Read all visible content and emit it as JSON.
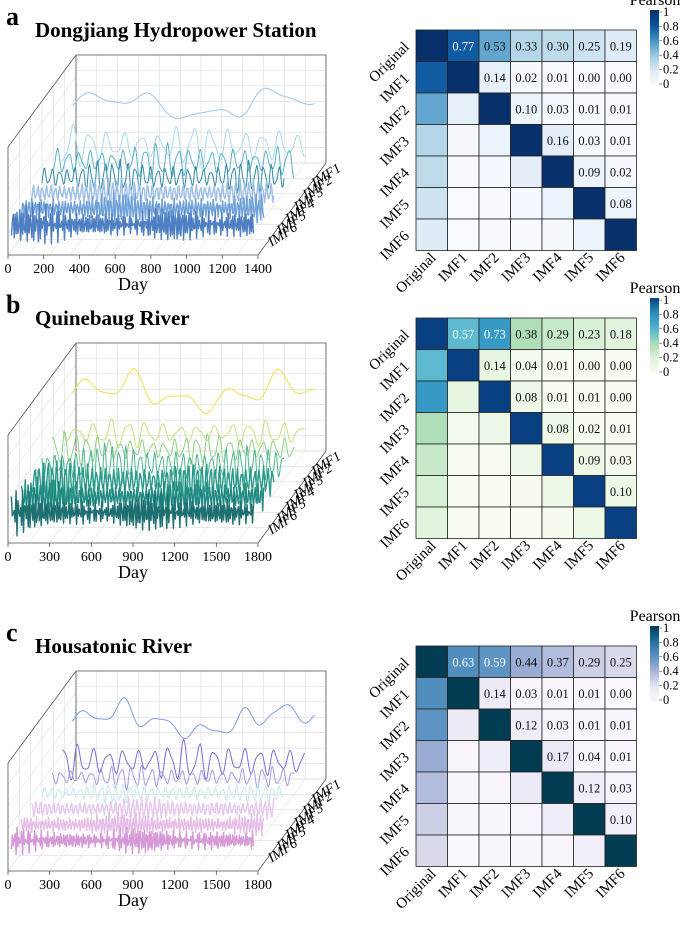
{
  "chart_data": [
    {
      "type": "line",
      "panel_label": "a",
      "title": "Dongjiang Hydropower Station",
      "xlabel": "Day",
      "x_ticks": [
        "0",
        "200",
        "400",
        "600",
        "800",
        "1000",
        "1200",
        "1400"
      ],
      "xlim": [
        0,
        1400
      ],
      "series": [
        {
          "name": "Original",
          "color": "#9dc7ec",
          "amplitude": 0.55,
          "cycles": 4
        },
        {
          "name": "IMF1",
          "color": "#abd9ea",
          "amplitude": 0.85,
          "cycles": 14
        },
        {
          "name": "IMF2",
          "color": "#5ab2c8",
          "amplitude": 0.7,
          "cycles": 22
        },
        {
          "name": "IMF3",
          "color": "#2f8aa6",
          "amplitude": 0.65,
          "cycles": 32
        },
        {
          "name": "IMF4",
          "color": "#9ebfe6",
          "amplitude": 0.55,
          "cycles": 55
        },
        {
          "name": "IMF5",
          "color": "#6fa0d8",
          "amplitude": 0.65,
          "cycles": 80
        },
        {
          "name": "IMF6",
          "color": "#4d7fc2",
          "amplitude": 0.75,
          "cycles": 110
        }
      ],
      "depth_labels": [
        "IMF1",
        "IMF2",
        "IMF3",
        "IMF4",
        "IMF5",
        "IMF6"
      ]
    },
    {
      "type": "line",
      "panel_label": "b",
      "title": "Quinebaug River",
      "xlabel": "Day",
      "x_ticks": [
        "0",
        "300",
        "600",
        "900",
        "1200",
        "1500",
        "1800"
      ],
      "xlim": [
        0,
        1800
      ],
      "series": [
        {
          "name": "Original",
          "color": "#f0e04c",
          "amplitude": 0.8,
          "cycles": 5
        },
        {
          "name": "IMF1",
          "color": "#c5e27a",
          "amplitude": 0.55,
          "cycles": 14
        },
        {
          "name": "IMF2",
          "color": "#8fd088",
          "amplitude": 0.6,
          "cycles": 22
        },
        {
          "name": "IMF3",
          "color": "#4db68e",
          "amplitude": 0.8,
          "cycles": 34
        },
        {
          "name": "IMF4",
          "color": "#2a9a8a",
          "amplitude": 0.8,
          "cycles": 55
        },
        {
          "name": "IMF5",
          "color": "#1f8a82",
          "amplitude": 0.75,
          "cycles": 80
        },
        {
          "name": "IMF6",
          "color": "#1e6f72",
          "amplitude": 0.8,
          "cycles": 110
        }
      ],
      "depth_labels": [
        "IMF1",
        "IMF2",
        "IMF3",
        "IMF4",
        "IMF5",
        "IMF6"
      ]
    },
    {
      "type": "line",
      "panel_label": "c",
      "title": "Housatonic River",
      "xlabel": "Day",
      "x_ticks": [
        "0",
        "300",
        "600",
        "900",
        "1200",
        "1500",
        "1800"
      ],
      "xlim": [
        0,
        1800
      ],
      "series": [
        {
          "name": "Original",
          "color": "#7f9de6",
          "amplitude": 0.6,
          "cycles": 6
        },
        {
          "name": "IMF1",
          "color": "#7a6fd4",
          "amplitude": 0.8,
          "cycles": 16
        },
        {
          "name": "IMF2",
          "color": "#a59be4",
          "amplitude": 0.45,
          "cycles": 24
        },
        {
          "name": "IMF3",
          "color": "#c7e9f0",
          "amplitude": 0.4,
          "cycles": 34
        },
        {
          "name": "IMF4",
          "color": "#e7c8ef",
          "amplitude": 0.45,
          "cycles": 55
        },
        {
          "name": "IMF5",
          "color": "#e6bde6",
          "amplitude": 0.5,
          "cycles": 80
        },
        {
          "name": "IMF6",
          "color": "#d69ad6",
          "amplitude": 0.55,
          "cycles": 110
        }
      ],
      "depth_labels": [
        "IMF1",
        "IMF2",
        "IMF3",
        "IMF4",
        "IMF5",
        "IMF6"
      ]
    },
    {
      "type": "heatmap",
      "panel": "a",
      "legend_title": "Pearson",
      "legend_ticks": [
        "1",
        "0.8",
        "0.6",
        "0.4",
        "0.2",
        "0"
      ],
      "colorscale": [
        "#f7fbff",
        "#deebf7",
        "#9ecae1",
        "#4292c6",
        "#08519c",
        "#08306b"
      ],
      "labels": [
        "Original",
        "IMF1",
        "IMF2",
        "IMF3",
        "IMF4",
        "IMF5",
        "IMF6"
      ],
      "matrix": [
        [
          1.0,
          0.77,
          0.53,
          0.33,
          0.3,
          0.25,
          0.19
        ],
        [
          0.77,
          1.0,
          0.14,
          0.02,
          0.01,
          0.0,
          0.0
        ],
        [
          0.53,
          0.14,
          1.0,
          0.1,
          0.03,
          0.01,
          0.01
        ],
        [
          0.33,
          0.02,
          0.1,
          1.0,
          0.16,
          0.03,
          0.01
        ],
        [
          0.3,
          0.01,
          0.03,
          0.16,
          1.0,
          0.09,
          0.02
        ],
        [
          0.25,
          0.0,
          0.01,
          0.03,
          0.09,
          1.0,
          0.08
        ],
        [
          0.19,
          0.0,
          0.01,
          0.01,
          0.02,
          0.08,
          1.0
        ]
      ]
    },
    {
      "type": "heatmap",
      "panel": "b",
      "legend_title": "Pearson",
      "legend_ticks": [
        "1",
        "0.8",
        "0.6",
        "0.4",
        "0.2",
        "0"
      ],
      "colorscale": [
        "#f7fcf0",
        "#e0f3db",
        "#a8ddb5",
        "#4eb3d3",
        "#2b8cbe",
        "#084081"
      ],
      "labels": [
        "Original",
        "IMF1",
        "IMF2",
        "IMF3",
        "IMF4",
        "IMF5",
        "IMF6"
      ],
      "matrix": [
        [
          1.0,
          0.57,
          0.73,
          0.38,
          0.29,
          0.23,
          0.18
        ],
        [
          0.57,
          1.0,
          0.14,
          0.04,
          0.01,
          0.0,
          0.0
        ],
        [
          0.73,
          0.14,
          1.0,
          0.08,
          0.01,
          0.01,
          0.0
        ],
        [
          0.38,
          0.04,
          0.08,
          1.0,
          0.08,
          0.02,
          0.01
        ],
        [
          0.29,
          0.01,
          0.01,
          0.08,
          1.0,
          0.09,
          0.03
        ],
        [
          0.23,
          0.0,
          0.01,
          0.02,
          0.09,
          1.0,
          0.1
        ],
        [
          0.18,
          0.0,
          0.0,
          0.01,
          0.03,
          0.1,
          1.0
        ]
      ]
    },
    {
      "type": "heatmap",
      "panel": "c",
      "legend_title": "Pearson",
      "legend_ticks": [
        "1",
        "0.8",
        "0.6",
        "0.4",
        "0.2",
        "0"
      ],
      "colorscale": [
        "#fcf7fe",
        "#e7e6f3",
        "#a9b4d8",
        "#5a92c2",
        "#1f6fa0",
        "#013c53"
      ],
      "labels": [
        "Original",
        "IMF1",
        "IMF2",
        "IMF3",
        "IMF4",
        "IMF5",
        "IMF6"
      ],
      "matrix": [
        [
          1.0,
          0.63,
          0.59,
          0.44,
          0.37,
          0.29,
          0.25
        ],
        [
          0.63,
          1.0,
          0.14,
          0.03,
          0.01,
          0.01,
          0.0
        ],
        [
          0.59,
          0.14,
          1.0,
          0.12,
          0.03,
          0.01,
          0.01
        ],
        [
          0.44,
          0.03,
          0.12,
          1.0,
          0.17,
          0.04,
          0.01
        ],
        [
          0.37,
          0.01,
          0.03,
          0.17,
          1.0,
          0.12,
          0.03
        ],
        [
          0.29,
          0.01,
          0.01,
          0.04,
          0.12,
          1.0,
          0.1
        ],
        [
          0.25,
          0.0,
          0.01,
          0.01,
          0.03,
          0.1,
          1.0
        ]
      ]
    }
  ]
}
